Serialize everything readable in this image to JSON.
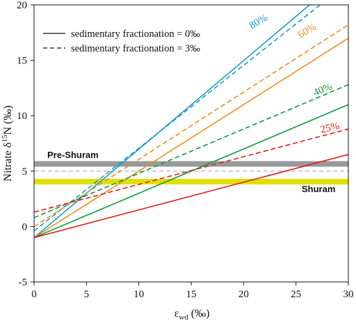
{
  "chart_data": {
    "type": "line",
    "xlabel_main": "ε",
    "xlabel_sub": "wd",
    "xlabel_unit": " (‰)",
    "ylabel_main": "Nitrate δ",
    "ylabel_sup": "15",
    "ylabel_rest": "N (‰)",
    "xlim": [
      0,
      30
    ],
    "ylim": [
      -5,
      20
    ],
    "xticks": [
      "0",
      "5",
      "10",
      "15",
      "20",
      "25",
      "30"
    ],
    "yticks": [
      "-5",
      "0",
      "5",
      "10",
      "15",
      "20"
    ],
    "grid": false,
    "legend": {
      "placement": "top-left",
      "items": [
        {
          "label": "sedimentary fractionation = 0‰",
          "style": "solid"
        },
        {
          "label": "sedimentary fractionation = 3‰",
          "style": "dashed"
        }
      ]
    },
    "bands": [
      {
        "label": "Pre-Shuram",
        "y0": 5.4,
        "y1": 5.9,
        "color": "#999999"
      },
      {
        "label": "Shuram",
        "y0": 3.8,
        "y1": 4.3,
        "color": "#e0e000"
      }
    ],
    "reference_line": {
      "y": 5.0,
      "color": "#b8b8c8",
      "style": "dashed"
    },
    "series": [
      {
        "label": "80%",
        "color": "#1a9bc4",
        "solid": [
          [
            0,
            -1.0
          ],
          [
            26.3,
            20
          ]
        ],
        "dashed": [
          [
            0,
            -0.4
          ],
          [
            27.3,
            20
          ]
        ]
      },
      {
        "label": "60%",
        "color": "#f08c1e",
        "solid": [
          [
            0,
            -1.0
          ],
          [
            30,
            17.0
          ]
        ],
        "dashed": [
          [
            0,
            0.0
          ],
          [
            30,
            18.2
          ]
        ]
      },
      {
        "label": "40%",
        "color": "#0a9a3c",
        "solid": [
          [
            0,
            -1.0
          ],
          [
            30,
            11.0
          ]
        ],
        "dashed": [
          [
            0,
            0.8
          ],
          [
            30,
            12.8
          ]
        ]
      },
      {
        "label": "25%",
        "color": "#e01c1c",
        "solid": [
          [
            0,
            -1.0
          ],
          [
            30,
            6.5
          ]
        ],
        "dashed": [
          [
            0,
            1.3
          ],
          [
            30,
            8.8
          ]
        ]
      }
    ]
  }
}
